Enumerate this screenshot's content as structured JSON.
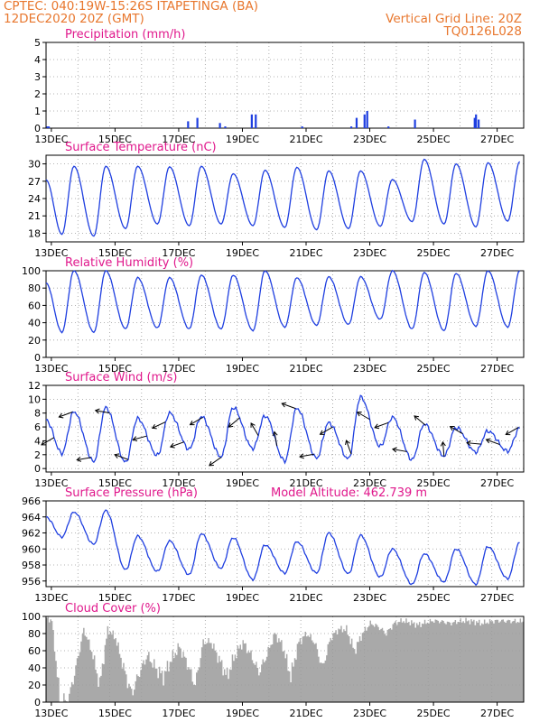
{
  "header": {
    "line1_left": "CPTEC:   040:19W-15:26S   ITAPETINGA (BA)",
    "line2_left": "12DEC2020 20Z (GMT)",
    "line1_right": "Vertical Grid Line: 20Z",
    "line2_right": "TQ0126L028"
  },
  "colors": {
    "header": "#e8772e",
    "panel_title": "#e0188c",
    "series": "#1f3fe0",
    "cloud": "#a9a9a9",
    "wind_arrow": "#000000",
    "grid": "#9a9a9a"
  },
  "x_axis": {
    "start": "12DEC 20Z",
    "end": "27DEC 20Z",
    "tick_labels": [
      "13DEC",
      "15DEC",
      "17DEC",
      "19DEC",
      "21DEC",
      "23DEC",
      "25DEC",
      "27DEC"
    ],
    "vertical_grid": "every day at 20Z, dotted"
  },
  "chart_data": [
    {
      "type": "bar",
      "title": "Precipitation (mm/h)",
      "ylim": [
        0,
        5
      ],
      "yticks": [
        "0",
        "1",
        "2",
        "3",
        "4",
        "5"
      ],
      "grid": true,
      "x": [
        "12DEC 21Z",
        "12DEC 22Z",
        "17DEC 07Z",
        "17DEC 14Z",
        "18DEC 07Z",
        "18DEC 11Z",
        "19DEC 07Z",
        "19DEC 10Z",
        "20DEC 21Z",
        "22DEC 10Z",
        "22DEC 14Z",
        "22DEC 20Z",
        "22DEC 22Z",
        "23DEC 14Z",
        "24DEC 10Z",
        "26DEC 07Z",
        "26DEC 08Z",
        "26DEC 10Z"
      ],
      "values": [
        0.1,
        0.1,
        0.4,
        0.6,
        0.3,
        0.1,
        0.8,
        0.8,
        0.1,
        0.1,
        0.6,
        0.8,
        1.0,
        0.1,
        0.5,
        0.6,
        0.8,
        0.5
      ]
    },
    {
      "type": "line",
      "title": "Surface Temperature (nC)",
      "ylim": [
        16.5,
        31.5
      ],
      "yticks": [
        "18",
        "21",
        "24",
        "27",
        "30"
      ],
      "grid": true,
      "series": [
        {
          "days": [
            "13DEC",
            "14DEC",
            "15DEC",
            "16DEC",
            "17DEC",
            "18DEC",
            "19DEC",
            "20DEC",
            "21DEC",
            "22DEC",
            "23DEC",
            "24DEC",
            "25DEC",
            "26DEC",
            "27DEC"
          ],
          "max": [
            29.6,
            29.6,
            29.6,
            29.5,
            29.6,
            28.3,
            28.9,
            29.4,
            28.8,
            28.8,
            27.3,
            30.8,
            30.0,
            30.2,
            30.4
          ],
          "min": [
            17.8,
            17.5,
            18.8,
            19.6,
            19.3,
            19.6,
            19.3,
            19.0,
            18.6,
            18.8,
            19.2,
            20.0,
            19.6,
            19.1,
            20.1
          ]
        }
      ]
    },
    {
      "type": "line",
      "title": "Relative Humidity (%)",
      "ylim": [
        0,
        100
      ],
      "yticks": [
        "0",
        "20",
        "40",
        "60",
        "80",
        "100"
      ],
      "grid": true,
      "series": [
        {
          "days": [
            "13DEC",
            "14DEC",
            "15DEC",
            "16DEC",
            "17DEC",
            "18DEC",
            "19DEC",
            "20DEC",
            "21DEC",
            "22DEC",
            "23DEC",
            "24DEC",
            "25DEC",
            "26DEC",
            "27DEC"
          ],
          "max": [
            100,
            100,
            92,
            92,
            95,
            95,
            100,
            92,
            93,
            93,
            100,
            98,
            97,
            100,
            100
          ],
          "min": [
            29,
            29,
            33,
            34,
            33,
            33,
            31,
            35,
            37,
            38,
            44,
            33,
            31,
            36,
            35
          ]
        }
      ]
    },
    {
      "type": "line",
      "title": "Surface Wind (m/s)",
      "ylim": [
        -0.5,
        12
      ],
      "yticks": [
        "0",
        "2",
        "4",
        "6",
        "8",
        "10",
        "12"
      ],
      "grid": true,
      "series": [
        {
          "days": [
            "13DEC",
            "14DEC",
            "15DEC",
            "16DEC",
            "17DEC",
            "18DEC",
            "19DEC",
            "20DEC",
            "21DEC",
            "22DEC",
            "23DEC",
            "24DEC",
            "25DEC",
            "26DEC",
            "27DEC"
          ],
          "max": [
            8.2,
            8.8,
            7.2,
            8.0,
            7.5,
            8.8,
            7.6,
            8.7,
            6.6,
            10.3,
            7.4,
            6.4,
            5.9,
            5.4,
            5.8
          ],
          "min": [
            2.2,
            1.0,
            0.9,
            1.9,
            2.8,
            1.7,
            2.9,
            1.1,
            1.5,
            1.4,
            3.2,
            1.3,
            1.8,
            2.4,
            2.5
          ]
        }
      ],
      "arrows": "wind direction arrows drawn on the speed curve"
    },
    {
      "type": "line",
      "title": "Surface Pressure (hPa)",
      "annotation": "Model Altitude: 462.739 m",
      "ylim": [
        955.3,
        966.0
      ],
      "yticks": [
        "956",
        "958",
        "960",
        "962",
        "964",
        "966"
      ],
      "grid": true,
      "series": [
        {
          "days": [
            "13DEC",
            "14DEC",
            "15DEC",
            "16DEC",
            "17DEC",
            "18DEC",
            "19DEC",
            "20DEC",
            "21DEC",
            "22DEC",
            "23DEC",
            "24DEC",
            "25DEC",
            "26DEC",
            "27DEC"
          ],
          "max": [
            964.6,
            964.8,
            961.6,
            961.0,
            961.9,
            961.4,
            960.5,
            960.9,
            962.0,
            961.7,
            960.0,
            959.4,
            960.0,
            960.3,
            960.8
          ],
          "min": [
            961.5,
            960.6,
            957.4,
            957.2,
            956.8,
            957.6,
            956.2,
            957.0,
            957.0,
            956.9,
            956.5,
            955.6,
            955.9,
            955.6,
            956.3
          ]
        }
      ]
    },
    {
      "type": "area",
      "title": "Cloud Cover (%)",
      "ylim": [
        0,
        100
      ],
      "yticks": [
        "0",
        "20",
        "40",
        "60",
        "80",
        "100"
      ],
      "grid": true,
      "series": [
        {
          "x": [
            "12DEC 20Z",
            "13DEC 00Z",
            "13DEC 06Z",
            "13DEC 12Z",
            "13DEC 18Z",
            "14DEC 00Z",
            "14DEC 06Z",
            "14DEC 12Z",
            "14DEC 18Z",
            "15DEC 00Z",
            "15DEC 06Z",
            "15DEC 12Z",
            "15DEC 18Z",
            "16DEC 00Z",
            "16DEC 06Z",
            "16DEC 12Z",
            "16DEC 18Z",
            "17DEC 00Z",
            "17DEC 06Z",
            "17DEC 12Z",
            "17DEC 18Z",
            "18DEC 00Z",
            "18DEC 06Z",
            "18DEC 12Z",
            "18DEC 18Z",
            "19DEC 00Z",
            "19DEC 06Z",
            "19DEC 12Z",
            "19DEC 18Z",
            "20DEC 00Z",
            "20DEC 06Z",
            "20DEC 12Z",
            "20DEC 18Z",
            "21DEC 00Z",
            "21DEC 06Z",
            "21DEC 12Z",
            "21DEC 18Z",
            "22DEC 00Z",
            "22DEC 06Z",
            "22DEC 12Z",
            "22DEC 18Z",
            "23DEC 00Z",
            "23DEC 06Z",
            "23DEC 12Z",
            "23DEC 18Z",
            "24DEC 00Z",
            "24DEC 06Z",
            "24DEC 12Z",
            "24DEC 18Z",
            "25DEC 00Z",
            "25DEC 06Z",
            "25DEC 12Z",
            "25DEC 18Z",
            "26DEC 00Z",
            "26DEC 06Z",
            "26DEC 12Z",
            "26DEC 18Z",
            "27DEC 00Z",
            "27DEC 20Z"
          ],
          "values": [
            98,
            95,
            2,
            0,
            40,
            85,
            60,
            20,
            85,
            75,
            40,
            10,
            35,
            55,
            40,
            30,
            50,
            65,
            45,
            20,
            70,
            70,
            50,
            30,
            55,
            70,
            55,
            35,
            55,
            80,
            65,
            30,
            70,
            80,
            70,
            40,
            75,
            85,
            85,
            60,
            80,
            92,
            88,
            80,
            92,
            95,
            93,
            90,
            93,
            95,
            94,
            92,
            94,
            95,
            94,
            92,
            94,
            95,
            94
          ]
        }
      ]
    }
  ]
}
